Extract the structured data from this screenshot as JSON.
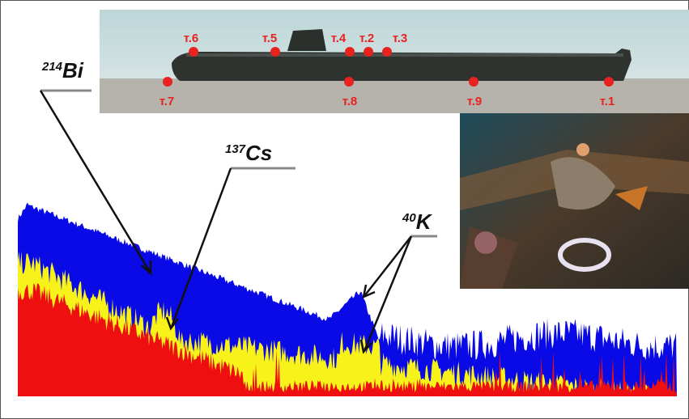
{
  "submarine": {
    "points": [
      {
        "label": "т.6"
      },
      {
        "label": "т.5"
      },
      {
        "label": "т.4"
      },
      {
        "label": "т.2"
      },
      {
        "label": "т.3"
      },
      {
        "label": "т.7"
      },
      {
        "label": "т.8"
      },
      {
        "label": "т.9"
      },
      {
        "label": "т.1"
      }
    ]
  },
  "isotopes": [
    {
      "mass": "214",
      "symbol": "Bi"
    },
    {
      "mass": "137",
      "symbol": "Cs"
    },
    {
      "mass": "40",
      "symbol": "K"
    }
  ]
}
